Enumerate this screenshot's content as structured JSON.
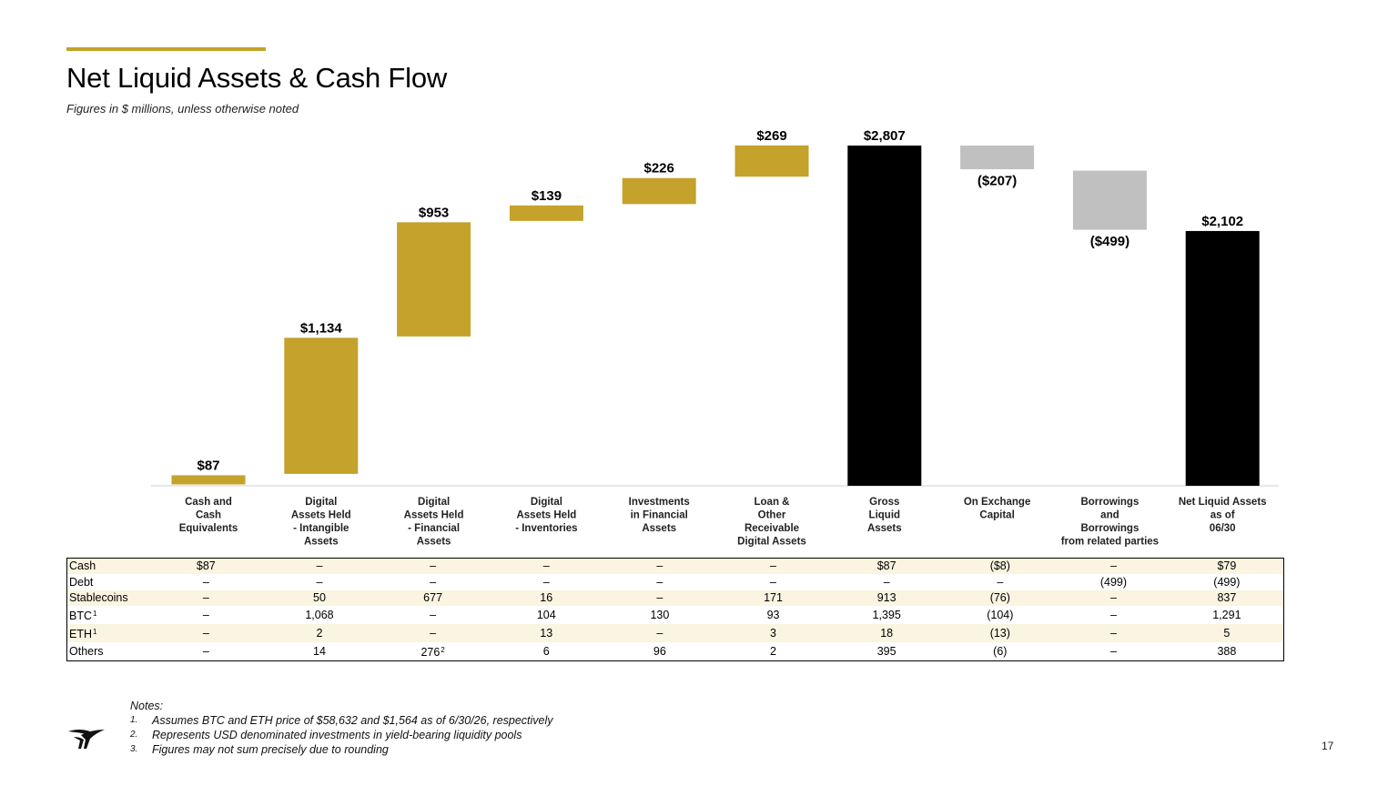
{
  "header": {
    "title": "Net Liquid Assets & Cash Flow",
    "subtitle": "Figures in $ millions, unless otherwise noted"
  },
  "colors": {
    "gold": "#c4a22b",
    "black": "#000000",
    "gray": "#c0c0c0",
    "shade": "#fbf4e1"
  },
  "chart_data": {
    "type": "bar",
    "subtype": "waterfall",
    "categories": [
      [
        "Cash and",
        "Cash",
        "Equivalents"
      ],
      [
        "Digital",
        "Assets Held",
        "- Intangible",
        "Assets"
      ],
      [
        "Digital",
        "Assets Held",
        "- Financial",
        "Assets"
      ],
      [
        "Digital",
        "Assets Held",
        "- Inventories"
      ],
      [
        "Investments",
        "in Financial",
        "Assets"
      ],
      [
        "Loan &",
        "Other",
        "Receivable",
        "Digital Assets"
      ],
      [
        "Gross",
        "Liquid",
        "Assets"
      ],
      [
        "On Exchange",
        "Capital"
      ],
      [
        "Borrowings",
        "and",
        "Borrowings",
        "from related parties"
      ],
      [
        "Net Liquid Assets",
        "as of",
        "06/30"
      ]
    ],
    "values": [
      87,
      1134,
      953,
      139,
      226,
      269,
      2807,
      -207,
      -499,
      2102
    ],
    "value_labels": [
      "$87",
      "$1,134",
      "$953",
      "$139",
      "$226",
      "$269",
      "$2,807",
      "($207)",
      "($499)",
      "$2,102"
    ],
    "kinds": [
      "increase",
      "increase",
      "increase",
      "increase",
      "increase",
      "increase",
      "total",
      "decrease",
      "decrease",
      "total"
    ],
    "ylim": [
      0,
      2807
    ],
    "grid": false,
    "legend": "none"
  },
  "table": {
    "rows": [
      {
        "label": "Cash",
        "sup": "",
        "shade": true,
        "cells": [
          "$87",
          "–",
          "–",
          "–",
          "–",
          "–",
          "$87",
          "($8)",
          "–",
          "$79"
        ]
      },
      {
        "label": "Debt",
        "sup": "",
        "shade": false,
        "cells": [
          "–",
          "–",
          "–",
          "–",
          "–",
          "–",
          "–",
          "–",
          "(499)",
          "(499)"
        ]
      },
      {
        "label": "Stablecoins",
        "sup": "",
        "shade": true,
        "cells": [
          "–",
          "50",
          "677",
          "16",
          "–",
          "171",
          "913",
          "(76)",
          "–",
          "837"
        ]
      },
      {
        "label": "BTC",
        "sup": "1",
        "shade": false,
        "cells": [
          "–",
          "1,068",
          "–",
          "104",
          "130",
          "93",
          "1,395",
          "(104)",
          "–",
          "1,291"
        ]
      },
      {
        "label": "ETH",
        "sup": "1",
        "shade": true,
        "cells": [
          "–",
          "2",
          "–",
          "13",
          "–",
          "3",
          "18",
          "(13)",
          "–",
          "5"
        ]
      },
      {
        "label": "Others",
        "sup": "",
        "shade": false,
        "cells": [
          "–",
          "14",
          "276",
          "6",
          "96",
          "2",
          "395",
          "(6)",
          "–",
          "388"
        ]
      }
    ],
    "others_financial_sup": "2"
  },
  "notes": {
    "heading": "Notes:",
    "items": [
      {
        "num": "1.",
        "text": "Assumes BTC and ETH price of $58,632 and $1,564 as of 6/30/26, respectively"
      },
      {
        "num": "2.",
        "text": "Represents USD denominated investments in yield-bearing liquidity pools"
      },
      {
        "num": "3.",
        "text": "Figures may not sum precisely due to rounding"
      }
    ]
  },
  "footer": {
    "page_number": "17",
    "logo_icon": "bird-logo-icon"
  }
}
